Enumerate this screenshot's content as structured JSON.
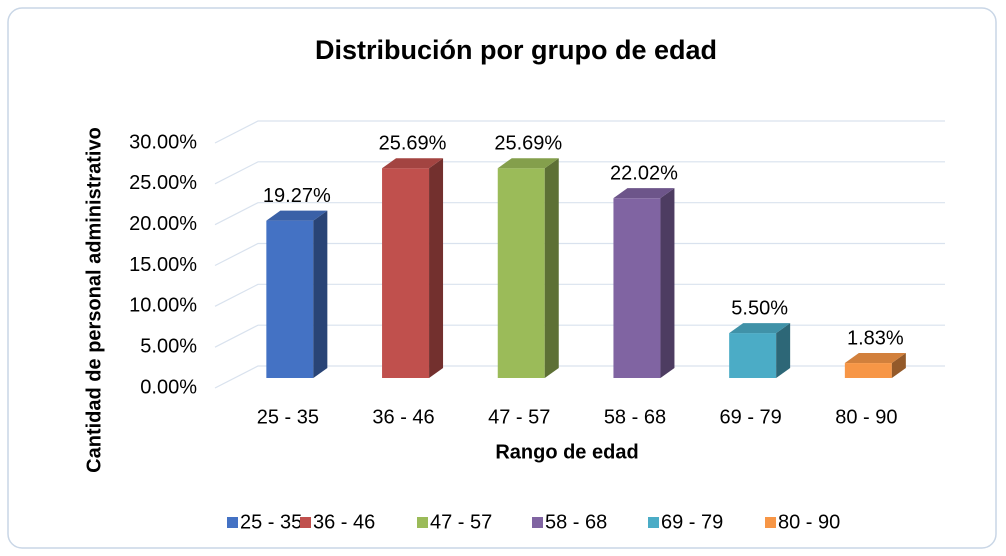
{
  "chart_data": {
    "type": "bar3d",
    "title": "Distribución por grupo de edad",
    "xlabel": "Rango de edad",
    "ylabel": "Cantidad de personal administrativo",
    "categories": [
      "25 - 35",
      "36 - 46",
      "47 - 57",
      "58 - 68",
      "69 - 79",
      "80 - 90"
    ],
    "values": [
      19.27,
      25.69,
      25.69,
      22.02,
      5.5,
      1.83
    ],
    "value_labels": [
      "19.27%",
      "25.69%",
      "25.69%",
      "22.02%",
      "5.50%",
      "1.83%"
    ],
    "colors": [
      "#4472c4",
      "#c0504d",
      "#9bbb59",
      "#8064a2",
      "#4bacc6",
      "#f79646"
    ],
    "ylim": [
      0,
      30
    ],
    "yticks": [
      {
        "value": 0,
        "label": "0.00%"
      },
      {
        "value": 5,
        "label": "5.00%"
      },
      {
        "value": 10,
        "label": "10.00%"
      },
      {
        "value": 15,
        "label": "15.00%"
      },
      {
        "value": 20,
        "label": "20.00%"
      },
      {
        "value": 25,
        "label": "25.00%"
      },
      {
        "value": 30,
        "label": "30.00%"
      }
    ],
    "grid": true,
    "legend": "bottom"
  }
}
